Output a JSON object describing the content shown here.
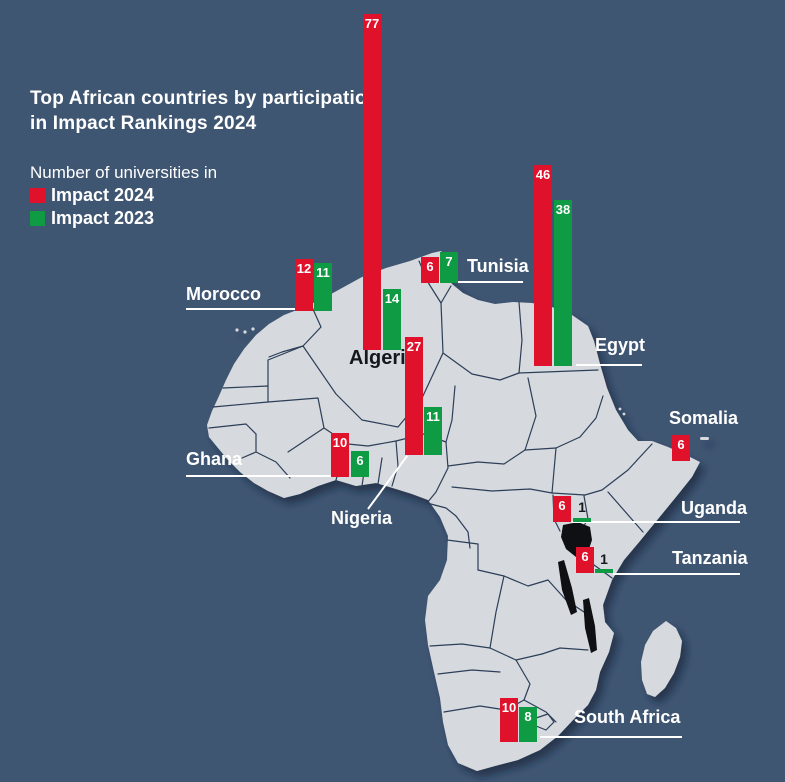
{
  "title": {
    "line1": "Top African countries by participation",
    "line2": "in Impact Rankings 2024"
  },
  "legend": {
    "heading": "Number of universities in",
    "items": [
      {
        "label": "Impact 2024",
        "color": "#e0112b"
      },
      {
        "label": "Impact 2023",
        "color": "#0f9a44"
      }
    ]
  },
  "colors": {
    "background": "#3f5673",
    "land": "#d6d9de",
    "impact2024": "#e0112b",
    "impact2023": "#0f9a44",
    "label_light": "#ffffff",
    "label_dark": "#15181c"
  },
  "countries": [
    {
      "name": "Morocco",
      "impact2024": 12,
      "impact2023": 11
    },
    {
      "name": "Algeria",
      "impact2024": 77,
      "impact2023": 14
    },
    {
      "name": "Tunisia",
      "impact2024": 6,
      "impact2023": 7
    },
    {
      "name": "Egypt",
      "impact2024": 46,
      "impact2023": 38
    },
    {
      "name": "Ghana",
      "impact2024": 10,
      "impact2023": 6
    },
    {
      "name": "Nigeria",
      "impact2024": 27,
      "impact2023": 11
    },
    {
      "name": "Somalia",
      "impact2024": 6,
      "impact2023": null
    },
    {
      "name": "Uganda",
      "impact2024": 6,
      "impact2023": 1
    },
    {
      "name": "Tanzania",
      "impact2024": 6,
      "impact2023": 1
    },
    {
      "name": "South Africa",
      "impact2024": 10,
      "impact2023": 8
    }
  ],
  "chart_data": {
    "type": "bar",
    "title": "Top African countries by participation in Impact Rankings 2024",
    "subtitle": "Number of universities in Impact 2024 vs Impact 2023",
    "categories": [
      "Morocco",
      "Algeria",
      "Tunisia",
      "Egypt",
      "Ghana",
      "Nigeria",
      "Somalia",
      "Uganda",
      "Tanzania",
      "South Africa"
    ],
    "series": [
      {
        "name": "Impact 2024",
        "color": "#e0112b",
        "values": [
          12,
          77,
          6,
          46,
          10,
          27,
          6,
          6,
          6,
          10
        ]
      },
      {
        "name": "Impact 2023",
        "color": "#0f9a44",
        "values": [
          11,
          14,
          7,
          38,
          6,
          11,
          null,
          1,
          1,
          8
        ]
      }
    ],
    "legend_position": "top-left",
    "grid": false,
    "overlay": "bars positioned over a political map of Africa"
  }
}
